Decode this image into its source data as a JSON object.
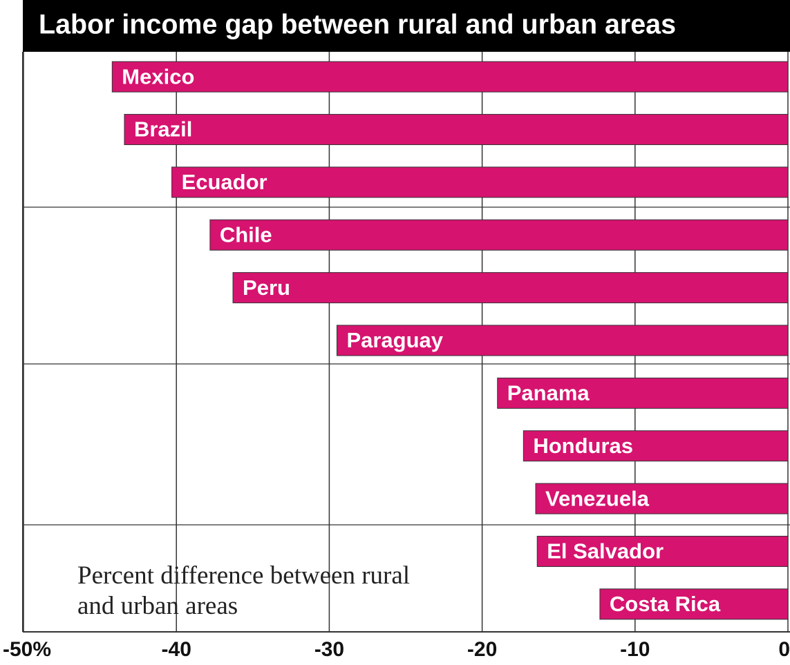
{
  "chart_data": {
    "type": "bar",
    "orientation": "horizontal",
    "title": "Labor income gap between rural and urban areas",
    "annotation": "Percent difference between rural and urban areas",
    "categories": [
      "Mexico",
      "Brazil",
      "Ecuador",
      "Chile",
      "Peru",
      "Paraguay",
      "Panama",
      "Honduras",
      "Venezuela",
      "El Salvador",
      "Costa Rica"
    ],
    "values": [
      -44.2,
      -43.4,
      -40.3,
      -37.8,
      -36.3,
      -29.5,
      -19.0,
      -17.3,
      -16.5,
      -16.4,
      -12.3
    ],
    "color": "#d6136f",
    "xlim": [
      -50,
      0
    ],
    "xticks": [
      {
        "value": -50,
        "label": "-50%"
      },
      -40,
      -30,
      -20,
      -10,
      0
    ],
    "grid": true
  }
}
